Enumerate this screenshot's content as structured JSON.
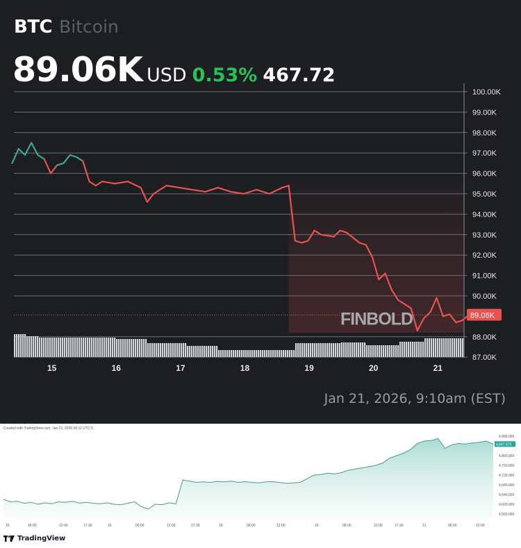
{
  "header": {
    "symbol": "BTC",
    "name": "Bitcoin",
    "price": "89.06K",
    "currency": "USD",
    "change_pct": "0.53%",
    "change_abs": "467.72"
  },
  "timestamp": "Jan 21, 2026, 9:10am (EST)",
  "watermark": "FINBOLD",
  "colors": {
    "background": "#1c1e22",
    "line_up": "#3ea597",
    "line_down": "#e8534f",
    "positive": "#27c256",
    "price_label": "#e8534f",
    "tv_line": "#4a9a8e"
  },
  "tradingview": {
    "created_note": "Created with TradingView.com, Jan 21, 2026 09:11 UTC-5",
    "logo_text": "TradingView",
    "last_price_label": "4,847.570"
  },
  "chart_data": [
    {
      "type": "line",
      "title": "BTC Bitcoin",
      "xlabel": "",
      "ylabel": "USD",
      "ylim": [
        87000,
        100000
      ],
      "y_ticks": [
        "100.00K",
        "99.00K",
        "98.00K",
        "97.00K",
        "96.00K",
        "95.00K",
        "94.00K",
        "93.00K",
        "92.00K",
        "91.00K",
        "90.00K",
        "88.00K",
        "87.00K"
      ],
      "x_ticks": [
        "15",
        "16",
        "17",
        "18",
        "19",
        "20",
        "21"
      ],
      "current_price_label": "89.06K",
      "grid": true,
      "x": [
        14.4,
        14.5,
        14.6,
        14.7,
        14.8,
        14.9,
        15.0,
        15.1,
        15.2,
        15.3,
        15.4,
        15.5,
        15.6,
        15.7,
        15.8,
        16.0,
        16.2,
        16.4,
        16.5,
        16.6,
        16.8,
        17.0,
        17.2,
        17.4,
        17.6,
        17.8,
        18.0,
        18.2,
        18.4,
        18.6,
        18.7,
        18.8,
        18.9,
        19.0,
        19.1,
        19.2,
        19.4,
        19.5,
        19.6,
        19.8,
        19.9,
        20.0,
        20.1,
        20.2,
        20.3,
        20.4,
        20.6,
        20.7,
        20.8,
        20.9,
        21.0,
        21.1,
        21.2,
        21.3,
        21.4,
        21.5
      ],
      "values": [
        96500,
        97200,
        96900,
        97500,
        96900,
        96700,
        96000,
        96400,
        96500,
        96900,
        96800,
        96600,
        95600,
        95400,
        95600,
        95500,
        95600,
        95300,
        94600,
        95000,
        95400,
        95300,
        95200,
        95100,
        95300,
        95100,
        95000,
        95200,
        95000,
        95300,
        95400,
        92700,
        92600,
        92700,
        93200,
        93000,
        92900,
        93200,
        93100,
        92600,
        92500,
        91900,
        90800,
        91100,
        90300,
        89800,
        89400,
        88300,
        88900,
        89200,
        89900,
        89000,
        89100,
        88700,
        88800,
        89060
      ],
      "volume_note": "grey volume/area histogram at bottom around 88K level"
    },
    {
      "type": "area",
      "title": "TradingView chart",
      "ylim": [
        4560000,
        4880000
      ],
      "y_ticks": [
        "4,880.000",
        "4,800.000",
        "4,760.000",
        "4,720.000",
        "4,680.000",
        "4,640.000",
        "4,600.000",
        "4,560.000"
      ],
      "x_ticks": [
        "15",
        "06:00",
        "12:00",
        "17:30",
        "16",
        "06:00",
        "12:00",
        "17:30",
        "19",
        "06:00",
        "12:00",
        "20",
        "06:00",
        "12:00",
        "17:30",
        "21",
        "06:00",
        "12:00"
      ],
      "last_value_label": "4,847.570",
      "values": [
        4620,
        4610,
        4612,
        4604,
        4608,
        4600,
        4606,
        4602,
        4610,
        4608,
        4612,
        4605,
        4608,
        4604,
        4602,
        4606,
        4600,
        4598,
        4604,
        4610,
        4590,
        4580,
        4600,
        4598,
        4606,
        4602,
        4700,
        4695,
        4690,
        4692,
        4690,
        4694,
        4692,
        4695,
        4690,
        4693,
        4690,
        4688,
        4692,
        4693,
        4690,
        4686,
        4688,
        4690,
        4705,
        4720,
        4722,
        4728,
        4725,
        4730,
        4740,
        4745,
        4750,
        4755,
        4760,
        4770,
        4790,
        4800,
        4810,
        4825,
        4850,
        4860,
        4862,
        4870,
        4830,
        4845,
        4850,
        4848,
        4852,
        4855,
        4860,
        4847.57
      ]
    }
  ]
}
